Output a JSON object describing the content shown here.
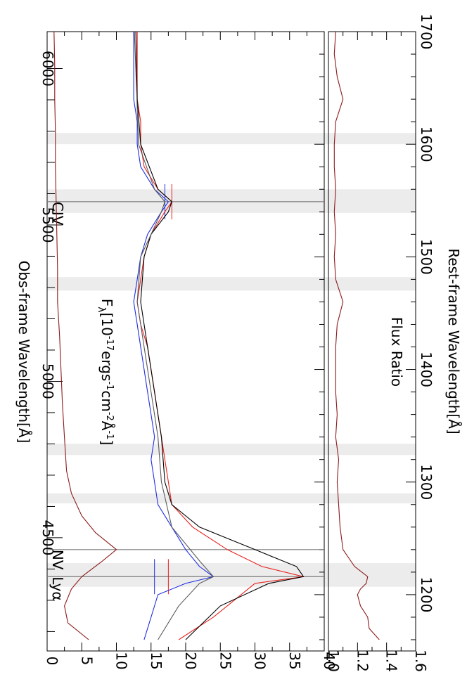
{
  "chart_data": {
    "type": "line",
    "orientation": "rotated-90-clockwise",
    "panels": [
      {
        "id": "spectrum",
        "ylabel": "F_λ[10^-17ergs^-1cm^-2Å^-1]",
        "ylabel_parts": {
          "base": "F",
          "sub": "λ",
          "rest": "[10",
          "e1": "-17",
          "t1": "ergs",
          "e2": "-1",
          "t2": "cm",
          "e3": "-2",
          "t3": "Å",
          "e4": "-1",
          "t4": "]"
        },
        "ylim": [
          0,
          40
        ],
        "yticks": [
          "0",
          "5",
          "10",
          "15",
          "20",
          "25",
          "30",
          "35",
          "40"
        ],
        "series": [
          {
            "color": "#e8221e",
            "x": [
              1160,
              1180,
              1200,
              1210,
              1216,
              1225,
              1240,
              1260,
              1280,
              1300,
              1320,
              1340,
              1360,
              1380,
              1400,
              1420,
              1440,
              1460,
              1480,
              1500,
              1520,
              1540,
              1549,
              1560,
              1580,
              1600,
              1620,
              1640,
              1660,
              1680,
              1700
            ],
            "y": [
              19,
              24,
              28,
              30,
              37,
              31,
              26,
              21,
              18,
              17.5,
              17,
              16.5,
              16,
              15.5,
              15,
              14.5,
              13.5,
              13,
              13.5,
              14,
              15,
              17,
              18,
              16,
              14,
              13.5,
              13.5,
              13,
              13,
              13,
              13
            ]
          },
          {
            "color": "#1f2ee0",
            "x": [
              1160,
              1180,
              1200,
              1210,
              1216,
              1225,
              1240,
              1260,
              1280,
              1300,
              1320,
              1340,
              1360,
              1380,
              1400,
              1420,
              1440,
              1460,
              1480,
              1500,
              1520,
              1540,
              1549,
              1560,
              1580,
              1600,
              1620,
              1640,
              1660,
              1680,
              1700
            ],
            "y": [
              14,
              15,
              16,
              20,
              24,
              22,
              20,
              18,
              16,
              15.5,
              15,
              15.5,
              15,
              14.5,
              14,
              13.5,
              13,
              12.5,
              13,
              13.5,
              14.5,
              16.5,
              17.5,
              15.5,
              13.5,
              13,
              13,
              12.5,
              12.5,
              12.5,
              12.5
            ]
          },
          {
            "color": "#000000",
            "x": [
              1160,
              1190,
              1210,
              1216,
              1225,
              1240,
              1260,
              1280,
              1300,
              1340,
              1380,
              1420,
              1460,
              1500,
              1520,
              1540,
              1549,
              1560,
              1600,
              1640,
              1700
            ],
            "y": [
              20,
              25,
              32,
              37,
              36,
              30,
              22,
              18,
              17,
              16.5,
              15.5,
              14.5,
              13.5,
              14,
              15,
              17.5,
              18,
              16,
              13.5,
              13,
              12.8
            ]
          },
          {
            "color": "#5a5a5a",
            "x": [
              1160,
              1190,
              1210,
              1216,
              1230,
              1260,
              1300,
              1340,
              1380,
              1420,
              1460,
              1500,
              1540,
              1549,
              1560,
              1600,
              1700
            ],
            "y": [
              16,
              19,
              22,
              24,
              22,
              18,
              16.5,
              16,
              15,
              14,
              13,
              13.5,
              16.5,
              17,
              15.5,
              13.2,
              12.6
            ]
          },
          {
            "color": "#8b1a1a",
            "x": [
              1160,
              1175,
              1190,
              1205,
              1216,
              1230,
              1240,
              1255,
              1270,
              1290,
              1310,
              1340,
              1370,
              1400,
              1430,
              1460,
              1490,
              1520,
              1550,
              1580,
              1610,
              1640,
              1670,
              1700
            ],
            "y": [
              6,
              3,
              2.5,
              3.5,
              5,
              8,
              10,
              7,
              5,
              3.5,
              2.8,
              2.5,
              2.2,
              2,
              1.8,
              1.5,
              1.5,
              1.4,
              1.3,
              1.2,
              1.2,
              1.1,
              1.1,
              1.0
            ]
          }
        ]
      },
      {
        "id": "ratio",
        "ylabel": "Flux Ratio",
        "ylim": [
          1.0,
          1.6
        ],
        "yticks": [
          "1.0",
          "1.2",
          "1.4",
          "1.6"
        ],
        "series": [
          {
            "color": "#8b1a1a",
            "x": [
              1160,
              1170,
              1180,
              1190,
              1200,
              1205,
              1210,
              1216,
              1225,
              1240,
              1260,
              1280,
              1300,
              1320,
              1340,
              1360,
              1380,
              1400,
              1420,
              1440,
              1460,
              1480,
              1500,
              1520,
              1540,
              1560,
              1580,
              1600,
              1620,
              1640,
              1660,
              1680,
              1700
            ],
            "y": [
              1.35,
              1.28,
              1.27,
              1.22,
              1.2,
              1.22,
              1.26,
              1.27,
              1.18,
              1.1,
              1.08,
              1.07,
              1.06,
              1.07,
              1.05,
              1.06,
              1.05,
              1.05,
              1.05,
              1.06,
              1.1,
              1.05,
              1.04,
              1.05,
              1.04,
              1.05,
              1.04,
              1.04,
              1.05,
              1.1,
              1.06,
              1.04,
              1.05
            ]
          }
        ]
      }
    ],
    "x_top": {
      "label": "Obs-frame Wavelength[Å]",
      "ticks": [
        "4500",
        "5000",
        "5500",
        "6000"
      ],
      "values": [
        4500,
        5000,
        5500,
        6000
      ]
    },
    "x_bottom": {
      "label": "Rest-frame Wavelength[Å]",
      "ticks": [
        "1200",
        "1300",
        "1400",
        "1500",
        "1600",
        "1700"
      ],
      "values": [
        1200,
        1300,
        1400,
        1500,
        1600,
        1700
      ]
    },
    "xlim_rest": [
      1150,
      1700
    ],
    "xlim_obs": [
      4138,
      6118
    ],
    "bands": [
      [
        1207,
        1228
      ],
      [
        1281,
        1290
      ],
      [
        1324,
        1334
      ],
      [
        1470,
        1482
      ],
      [
        1539,
        1560
      ],
      [
        1600,
        1610
      ]
    ],
    "lines": [
      {
        "label": "Lyα",
        "x": 1216
      },
      {
        "label": "NV",
        "x": 1240
      },
      {
        "label": "CIV",
        "x": 1549
      }
    ],
    "markers": [
      {
        "x": 1216,
        "y": 17.5,
        "color": "#e8221e"
      },
      {
        "x": 1216,
        "y": 15.5,
        "color": "#1f2ee0"
      },
      {
        "x": 1549,
        "y": 18,
        "color": "#e8221e"
      },
      {
        "x": 1549,
        "y": 17,
        "color": "#1f2ee0"
      }
    ]
  }
}
